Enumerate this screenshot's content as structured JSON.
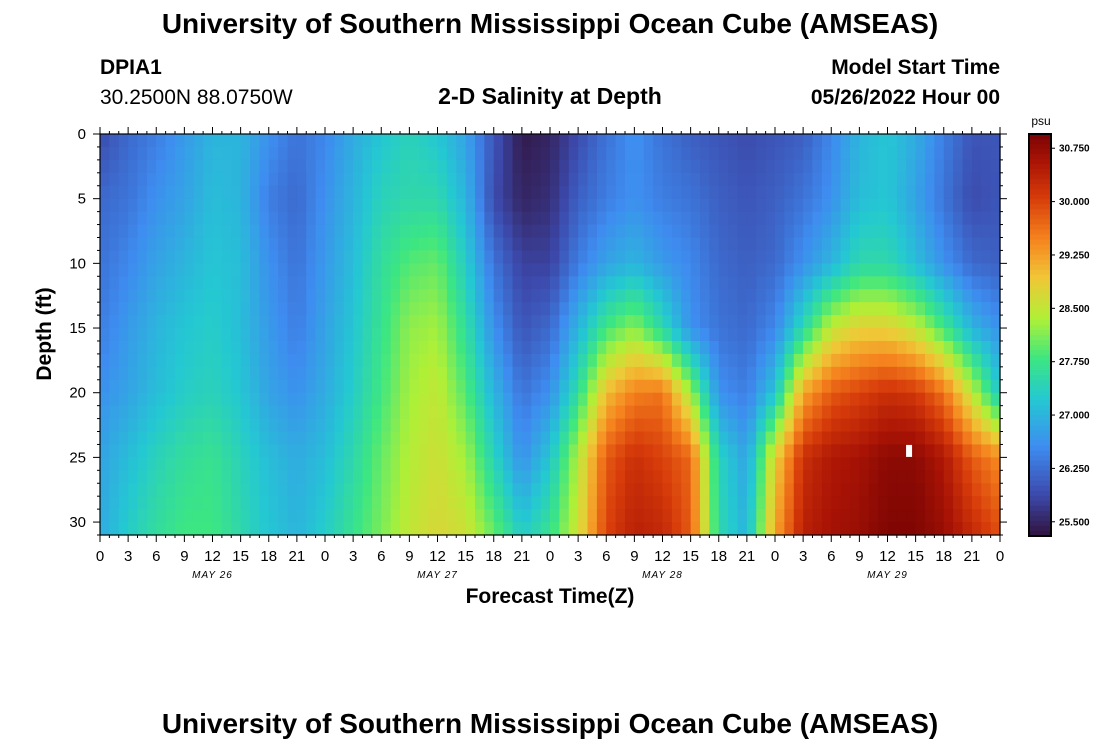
{
  "header": {
    "title": "University of Southern Mississippi Ocean Cube (AMSEAS)",
    "station_id": "DPIA1",
    "station_coords": "30.2500N  88.0750W",
    "model_label": "Model Start Time",
    "model_start": "05/26/2022 Hour 00"
  },
  "footer": {
    "title": "University of Southern Mississippi Ocean Cube (AMSEAS)"
  },
  "chart_data": {
    "type": "heatmap",
    "title": "2-D Salinity at Depth",
    "xlabel": "Forecast Time(Z)",
    "ylabel": "Depth (ft)",
    "x_hours_range": [
      0,
      96
    ],
    "ylim": [
      0,
      31
    ],
    "y_inverted": true,
    "x_ticks": [
      "0",
      "3",
      "6",
      "9",
      "12",
      "15",
      "18",
      "21",
      "0",
      "3",
      "6",
      "9",
      "12",
      "15",
      "18",
      "21",
      "0",
      "3",
      "6",
      "9",
      "12",
      "15",
      "18",
      "21",
      "0",
      "3",
      "6",
      "9",
      "12",
      "15",
      "18",
      "21",
      "0"
    ],
    "y_ticks": [
      "0",
      "5",
      "10",
      "15",
      "20",
      "25",
      "30"
    ],
    "day_labels": [
      {
        "label": "MAY 26",
        "hour": 12
      },
      {
        "label": "MAY 27",
        "hour": 36
      },
      {
        "label": "MAY 28",
        "hour": 60
      },
      {
        "label": "MAY 29",
        "hour": 84
      }
    ],
    "colorbar": {
      "unit": "psu",
      "range": [
        25.3,
        30.95
      ],
      "ticks": [
        "30.750",
        "30.000",
        "29.250",
        "28.500",
        "27.750",
        "27.000",
        "26.250",
        "25.500"
      ]
    },
    "salinity_psu": {
      "hours": [
        0,
        3,
        6,
        9,
        12,
        15,
        18,
        21,
        24,
        27,
        30,
        33,
        36,
        39,
        42,
        45,
        48,
        51,
        54,
        57,
        60,
        63,
        66,
        69,
        72,
        75,
        78,
        81,
        84,
        87,
        90,
        93,
        96
      ],
      "depths_ft": [
        0,
        5,
        10,
        15,
        20,
        25,
        31
      ],
      "values": [
        [
          25.9,
          26.2,
          26.4,
          26.7,
          27.0,
          27.0,
          26.6,
          26.3,
          26.5,
          26.9,
          27.2,
          27.4,
          27.2,
          26.8,
          26.0,
          25.4,
          25.5,
          25.9,
          26.3,
          26.6,
          26.3,
          26.1,
          26.0,
          25.9,
          26.0,
          26.1,
          26.5,
          27.0,
          27.2,
          26.9,
          26.4,
          26.0,
          26.0
        ],
        [
          26.2,
          26.3,
          26.6,
          26.8,
          27.1,
          27.0,
          26.4,
          26.2,
          26.6,
          27.0,
          27.4,
          27.5,
          27.5,
          27.0,
          25.9,
          25.5,
          25.6,
          26.1,
          26.4,
          26.6,
          26.4,
          26.3,
          26.1,
          26.0,
          26.1,
          26.3,
          26.6,
          27.1,
          27.2,
          26.8,
          26.3,
          25.9,
          26.0
        ],
        [
          26.3,
          26.5,
          26.8,
          27.0,
          27.2,
          27.1,
          26.6,
          26.3,
          26.7,
          27.1,
          27.6,
          27.9,
          28.0,
          27.3,
          26.3,
          25.8,
          25.8,
          26.4,
          26.8,
          27.0,
          26.7,
          26.5,
          26.2,
          26.1,
          26.2,
          26.6,
          27.0,
          27.5,
          27.5,
          27.1,
          26.6,
          26.2,
          26.1
        ],
        [
          26.4,
          26.7,
          27.0,
          27.2,
          27.3,
          27.1,
          26.7,
          26.4,
          26.8,
          27.2,
          27.7,
          28.2,
          28.3,
          27.6,
          26.6,
          26.0,
          26.2,
          27.0,
          27.8,
          28.2,
          27.5,
          26.6,
          26.3,
          26.2,
          26.5,
          27.5,
          28.5,
          28.8,
          28.8,
          28.5,
          27.8,
          27.0,
          26.6
        ],
        [
          26.6,
          26.8,
          27.1,
          27.3,
          27.4,
          27.2,
          26.8,
          26.6,
          26.9,
          27.3,
          27.8,
          28.3,
          28.5,
          27.9,
          27.0,
          26.3,
          26.6,
          27.6,
          29.0,
          29.5,
          29.6,
          28.3,
          26.6,
          26.4,
          27.2,
          29.2,
          29.8,
          30.0,
          30.2,
          30.1,
          29.6,
          28.5,
          27.2
        ],
        [
          26.8,
          27.1,
          27.4,
          27.6,
          27.7,
          27.4,
          27.1,
          26.9,
          27.1,
          27.5,
          28.0,
          28.4,
          28.6,
          28.3,
          27.4,
          26.6,
          27.2,
          28.4,
          29.8,
          30.2,
          30.0,
          29.7,
          27.4,
          26.8,
          28.8,
          30.2,
          30.5,
          30.6,
          30.8,
          30.8,
          30.5,
          29.8,
          29.4
        ],
        [
          26.9,
          27.3,
          27.6,
          27.8,
          27.8,
          27.5,
          27.2,
          27.0,
          27.3,
          27.7,
          28.1,
          28.5,
          28.7,
          28.6,
          28.0,
          27.3,
          27.7,
          28.6,
          30.0,
          30.4,
          30.3,
          29.8,
          27.5,
          27.0,
          29.2,
          30.4,
          30.6,
          30.7,
          30.9,
          30.9,
          30.7,
          30.3,
          29.9
        ]
      ]
    }
  }
}
